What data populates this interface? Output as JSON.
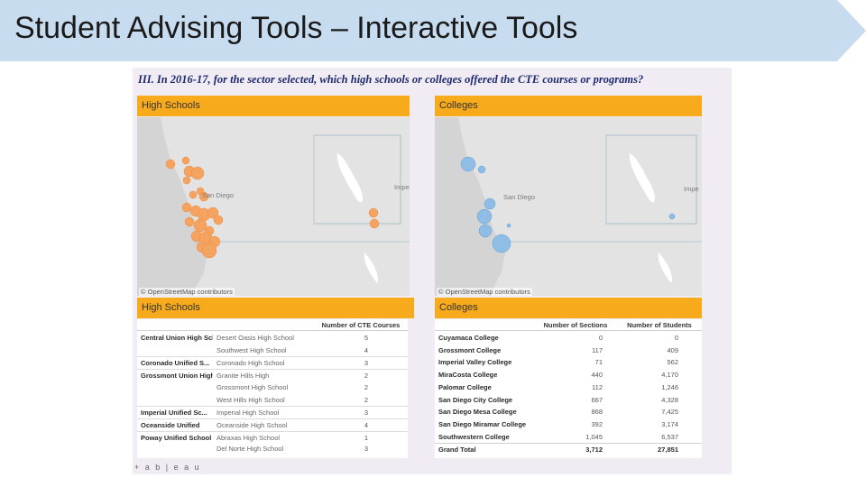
{
  "banner": {
    "title": "Student Advising Tools – Interactive Tools",
    "color": "#c8dcf0"
  },
  "dashboard": {
    "question": "III. In 2016-17, for the sector selected, which high schools or colleges offered the CTE courses or programs?",
    "map_left": {
      "header": "High Schools",
      "places": [
        "San Diego",
        "Impe"
      ],
      "attribution": "© OpenStreetMap contributors",
      "marker_color": "#f5a360"
    },
    "map_right": {
      "header": "Colleges",
      "places": [
        "San Diego",
        "Impe"
      ],
      "attribution": "© OpenStreetMap contributors",
      "marker_color": "#8fbde6"
    },
    "hs_table": {
      "header": "High Schools",
      "column": "Number of CTE Courses",
      "rows": [
        {
          "district": "Central Union High School District",
          "school": "Desert Oasis High School",
          "count": "5"
        },
        {
          "district": "",
          "school": "Southwest High School",
          "count": "4"
        },
        {
          "district": "Coronado Unified S...",
          "school": "Coronado High School",
          "count": "3"
        },
        {
          "district": "Grossmont Union High",
          "school": "Granite Hills High",
          "count": "2"
        },
        {
          "district": "",
          "school": "Grossmont High School",
          "count": "2"
        },
        {
          "district": "",
          "school": "West Hills High School",
          "count": "2"
        },
        {
          "district": "Imperial Unified Sc...",
          "school": "Imperial High School",
          "count": "3"
        },
        {
          "district": "Oceanside Unified",
          "school": "Oceanside High School",
          "count": "4"
        },
        {
          "district": "Poway Unified School District",
          "school": "Abraxas High School",
          "count": "1"
        },
        {
          "district": "",
          "school": "Del Norte High School",
          "count": "3"
        }
      ]
    },
    "college_table": {
      "header": "Colleges",
      "columns": [
        "Number of Sections",
        "Number of Students"
      ],
      "rows": [
        {
          "name": "Cuyamaca College",
          "sections": "0",
          "students": "0"
        },
        {
          "name": "Grossmont College",
          "sections": "117",
          "students": "409"
        },
        {
          "name": "Imperial Valley College",
          "sections": "71",
          "students": "562"
        },
        {
          "name": "MiraCosta College",
          "sections": "440",
          "students": "4,170"
        },
        {
          "name": "Palomar College",
          "sections": "112",
          "students": "1,246"
        },
        {
          "name": "San Diego City College",
          "sections": "667",
          "students": "4,328"
        },
        {
          "name": "San Diego Mesa College",
          "sections": "868",
          "students": "7,425"
        },
        {
          "name": "San Diego Miramar College",
          "sections": "392",
          "students": "3,174"
        },
        {
          "name": "Southwestern College",
          "sections": "1,045",
          "students": "6,537"
        },
        {
          "name": "Grand Total",
          "sections": "3,712",
          "students": "27,851"
        }
      ]
    },
    "footer": "+ a b | e a u"
  }
}
